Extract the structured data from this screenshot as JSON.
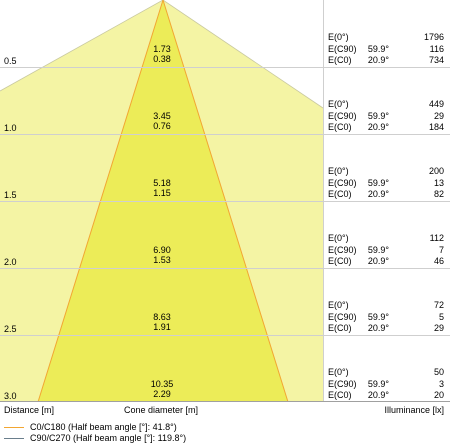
{
  "colors": {
    "cone_inner": "#ecec58",
    "cone_outer": "#f4f4a4",
    "c0_line": "#f2a632",
    "c90_line": "#6a7e8c",
    "grid": "#cfcfcf"
  },
  "footer": {
    "distance_label": "Distance [m]",
    "cone_label": "Cone diameter [m]",
    "illuminance_label": "Illuminance [lx]"
  },
  "legend": [
    {
      "text": "C0/C180 (Half beam angle [°]: 41.8°)",
      "color": "#f2a632"
    },
    {
      "text": "C90/C270 (Half beam angle [°]: 119.8°)",
      "color": "#6a7e8c"
    }
  ],
  "rows": [
    {
      "distance": "0.5",
      "d_c90": "1.73",
      "d_c0": "0.38",
      "e0_label": "E(0°)",
      "e0": "1796",
      "ec90_label": "E(C90)",
      "ec90_angle": "59.9°",
      "ec90": "116",
      "ec0_label": "E(C0)",
      "ec0_angle": "20.9°",
      "ec0": "734"
    },
    {
      "distance": "1.0",
      "d_c90": "3.45",
      "d_c0": "0.76",
      "e0_label": "E(0°)",
      "e0": "449",
      "ec90_label": "E(C90)",
      "ec90_angle": "59.9°",
      "ec90": "29",
      "ec0_label": "E(C0)",
      "ec0_angle": "20.9°",
      "ec0": "184"
    },
    {
      "distance": "1.5",
      "d_c90": "5.18",
      "d_c0": "1.15",
      "e0_label": "E(0°)",
      "e0": "200",
      "ec90_label": "E(C90)",
      "ec90_angle": "59.9°",
      "ec90": "13",
      "ec0_label": "E(C0)",
      "ec0_angle": "20.9°",
      "ec0": "82"
    },
    {
      "distance": "2.0",
      "d_c90": "6.90",
      "d_c0": "1.53",
      "e0_label": "E(0°)",
      "e0": "112",
      "ec90_label": "E(C90)",
      "ec90_angle": "59.9°",
      "ec90": "7",
      "ec0_label": "E(C0)",
      "ec0_angle": "20.9°",
      "ec0": "46"
    },
    {
      "distance": "2.5",
      "d_c90": "8.63",
      "d_c0": "1.91",
      "e0_label": "E(0°)",
      "e0": "72",
      "ec90_label": "E(C90)",
      "ec90_angle": "59.9°",
      "ec90": "5",
      "ec0_label": "E(C0)",
      "ec0_angle": "20.9°",
      "ec0": "29"
    },
    {
      "distance": "3.0",
      "d_c90": "10.35",
      "d_c0": "2.29",
      "e0_label": "E(0°)",
      "e0": "50",
      "ec90_label": "E(C90)",
      "ec90_angle": "59.9°",
      "ec90": "3",
      "ec0_label": "E(C0)",
      "ec0_angle": "20.9°",
      "ec0": "20"
    }
  ]
}
